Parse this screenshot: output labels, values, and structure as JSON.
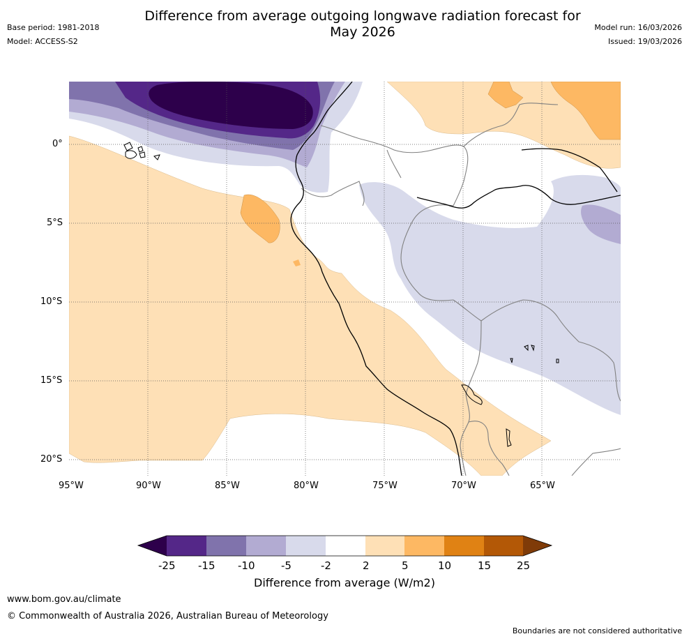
{
  "title": "Difference from average outgoing longwave radiation forecast for May 2026",
  "title_line1": "Difference from average outgoing longwave radiation forecast for",
  "title_line2": "May 2026",
  "meta_left": {
    "base_period": "Base period: 1981-2018",
    "model": "Model: ACCESS-S2"
  },
  "meta_right": {
    "model_run": "Model run: 16/03/2026",
    "issued": "Issued: 19/03/2026"
  },
  "map": {
    "region": "South America west coast",
    "lon_range": [
      -95,
      -60
    ],
    "lat_range": [
      -21,
      4
    ],
    "lon_ticks": [
      "95°W",
      "90°W",
      "85°W",
      "80°W",
      "75°W",
      "70°W",
      "65°W"
    ],
    "lat_ticks": [
      "0°",
      "5°S",
      "10°S",
      "15°S",
      "20°S"
    ],
    "ocean_color": "#ffffff",
    "coast_color": "#000000",
    "border_color": "#808080"
  },
  "colorbar": {
    "title": "Difference from average (W/m2)",
    "labels": [
      "-25",
      "-15",
      "-10",
      "-5",
      "-2",
      "2",
      "5",
      "10",
      "15",
      "25"
    ],
    "colors": [
      "#2d004b",
      "#542788",
      "#8073ac",
      "#b2abd2",
      "#d8daeb",
      "#ffffff",
      "#fee0b6",
      "#fdb863",
      "#e08214",
      "#b35806",
      "#7f3b08"
    ]
  },
  "footer": {
    "website": "www.bom.gov.au/climate",
    "copyright": "© Commonwealth of Australia 2026, Australian Bureau of Meteorology",
    "disclaimer": "Boundaries are not considered authoritative"
  }
}
